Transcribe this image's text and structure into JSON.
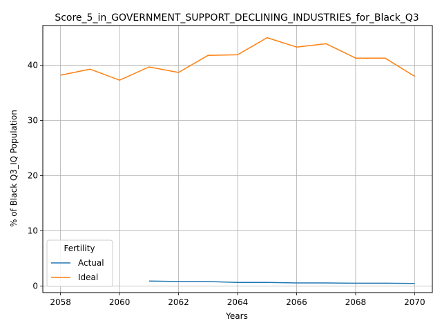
{
  "chart_data": {
    "type": "line",
    "title": "Score_5_in_GOVERNMENT_SUPPORT_DECLINING_INDUSTRIES_for_Black_Q3",
    "xlabel": "Years",
    "ylabel": "% of Black Q3_IQ Population",
    "xlim": [
      2057.4,
      2070.6
    ],
    "ylim": [
      -1.2,
      47.2
    ],
    "xticks": [
      2058,
      2060,
      2062,
      2064,
      2066,
      2068,
      2070
    ],
    "yticks": [
      0,
      10,
      20,
      30,
      40
    ],
    "grid": true,
    "legend": {
      "title": "Fertility",
      "placement": "lower-left"
    },
    "series": [
      {
        "name": "Actual",
        "color": "#1f77b4",
        "x": [
          2061,
          2062,
          2063,
          2064,
          2065,
          2066,
          2067,
          2068,
          2069,
          2070
        ],
        "y": [
          0.9,
          0.8,
          0.8,
          0.65,
          0.65,
          0.55,
          0.55,
          0.5,
          0.5,
          0.45
        ]
      },
      {
        "name": "Ideal",
        "color": "#ff7f0e",
        "x": [
          2058,
          2059,
          2060,
          2061,
          2062,
          2063,
          2064,
          2065,
          2066,
          2067,
          2068,
          2069,
          2070
        ],
        "y": [
          38.2,
          39.3,
          37.3,
          39.7,
          38.7,
          41.8,
          41.9,
          45.0,
          43.3,
          43.9,
          41.3,
          41.3,
          38.0
        ]
      }
    ]
  }
}
